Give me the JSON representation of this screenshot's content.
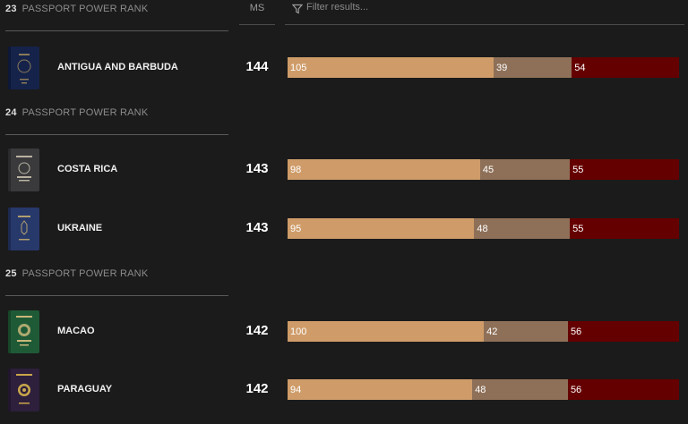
{
  "header": {
    "ms_label": "MS",
    "filter_placeholder": "Filter results..."
  },
  "colors": {
    "visa_free": "#cf9c69",
    "visa_on_arrival": "#8e7058",
    "visa_required": "#650000"
  },
  "rank_label": "PASSPORT POWER RANK",
  "ranks": [
    {
      "rank": "23",
      "countries": [
        {
          "name": "ANTIGUA AND BARBUDA",
          "ms": "144",
          "visa_free": "105",
          "visa_on_arrival": "39",
          "visa_required": "54",
          "passport_color": "#15234a"
        }
      ]
    },
    {
      "rank": "24",
      "countries": [
        {
          "name": "COSTA RICA",
          "ms": "143",
          "visa_free": "98",
          "visa_on_arrival": "45",
          "visa_required": "55",
          "passport_color": "#3a3a3c"
        },
        {
          "name": "UKRAINE",
          "ms": "143",
          "visa_free": "95",
          "visa_on_arrival": "48",
          "visa_required": "55",
          "passport_color": "#27386a"
        }
      ]
    },
    {
      "rank": "25",
      "countries": [
        {
          "name": "MACAO",
          "ms": "142",
          "visa_free": "100",
          "visa_on_arrival": "42",
          "visa_required": "56",
          "passport_color": "#1f5a37"
        },
        {
          "name": "PARAGUAY",
          "ms": "142",
          "visa_free": "94",
          "visa_on_arrival": "48",
          "visa_required": "56",
          "passport_color": "#2e1f3c"
        }
      ]
    }
  ]
}
